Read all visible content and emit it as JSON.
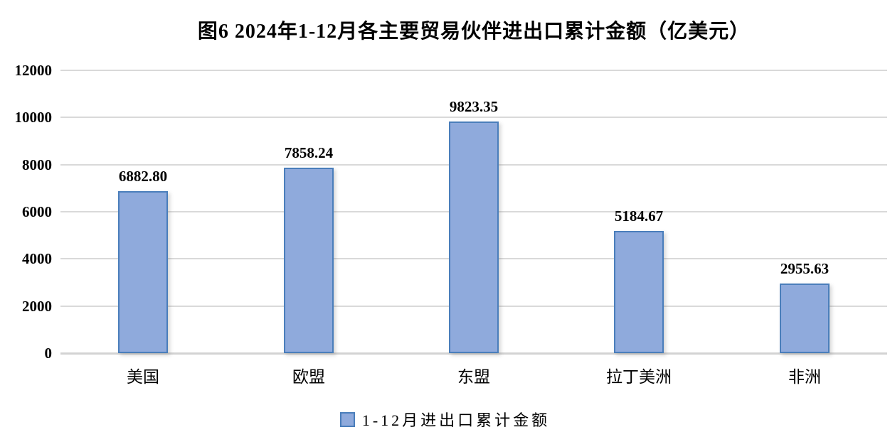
{
  "title": "图6 2024年1-12月各主要贸易伙伴进出口累计金额（亿美元）",
  "chart_data": {
    "type": "bar",
    "title": "图6 2024年1-12月各主要贸易伙伴进出口累计金额（亿美元）",
    "categories": [
      "美国",
      "欧盟",
      "东盟",
      "拉丁美洲",
      "非洲"
    ],
    "series": [
      {
        "name": "1-12月进出口累计金额",
        "values": [
          6882.8,
          7858.24,
          9823.35,
          5184.67,
          2955.63
        ],
        "data_labels": [
          "6882.80",
          "7858.24",
          "9823.35",
          "5184.67",
          "2955.63"
        ]
      }
    ],
    "xlabel": "",
    "ylabel": "",
    "ylim": [
      0,
      12000
    ],
    "y_ticks": [
      0,
      2000,
      4000,
      6000,
      8000,
      10000,
      12000
    ],
    "grid": "horizontal",
    "legend_position": "bottom",
    "colors": {
      "bar_fill": "#8FAADC",
      "bar_border": "#4A7EBB",
      "gridline": "#D9D9D9",
      "text": "#000000",
      "background": "#FFFFFF"
    }
  },
  "legend": {
    "items": [
      {
        "label": "1-12月进出口累计金额",
        "swatch_fill": "#8FAADC",
        "swatch_border": "#4A7EBB"
      }
    ]
  }
}
